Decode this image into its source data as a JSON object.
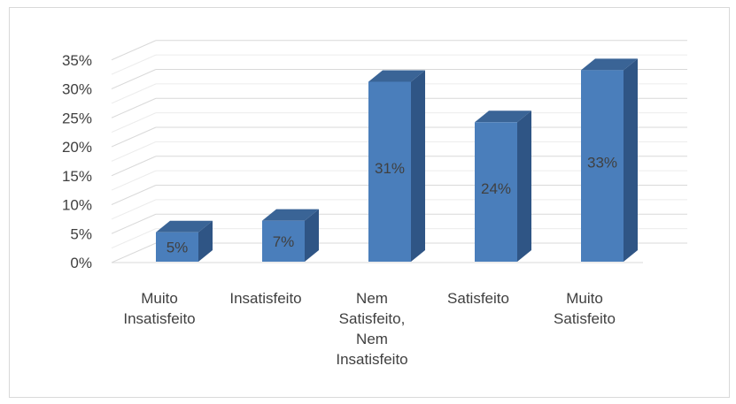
{
  "chart_data": {
    "type": "bar",
    "style": "3d-column",
    "categories": [
      [
        "Muito",
        "Insatisfeito"
      ],
      [
        "Insatisfeito"
      ],
      [
        "Nem",
        "Satisfeito,",
        "Nem",
        "Insatisfeito"
      ],
      [
        "Satisfeito"
      ],
      [
        "Muito",
        "Satisfeito"
      ]
    ],
    "values": [
      5,
      7,
      31,
      24,
      33
    ],
    "data_labels": [
      "5%",
      "7%",
      "31%",
      "24%",
      "33%"
    ],
    "y_ticks": [
      "0%",
      "5%",
      "10%",
      "15%",
      "20%",
      "25%",
      "30%",
      "35%"
    ],
    "ylim": [
      0,
      35
    ],
    "grid": true,
    "legend": "none",
    "colors": {
      "bar_front": "#4a7ebb",
      "bar_side": "#2f5585",
      "bar_top": "#3a6496",
      "grid": "#d9d9d9"
    }
  }
}
